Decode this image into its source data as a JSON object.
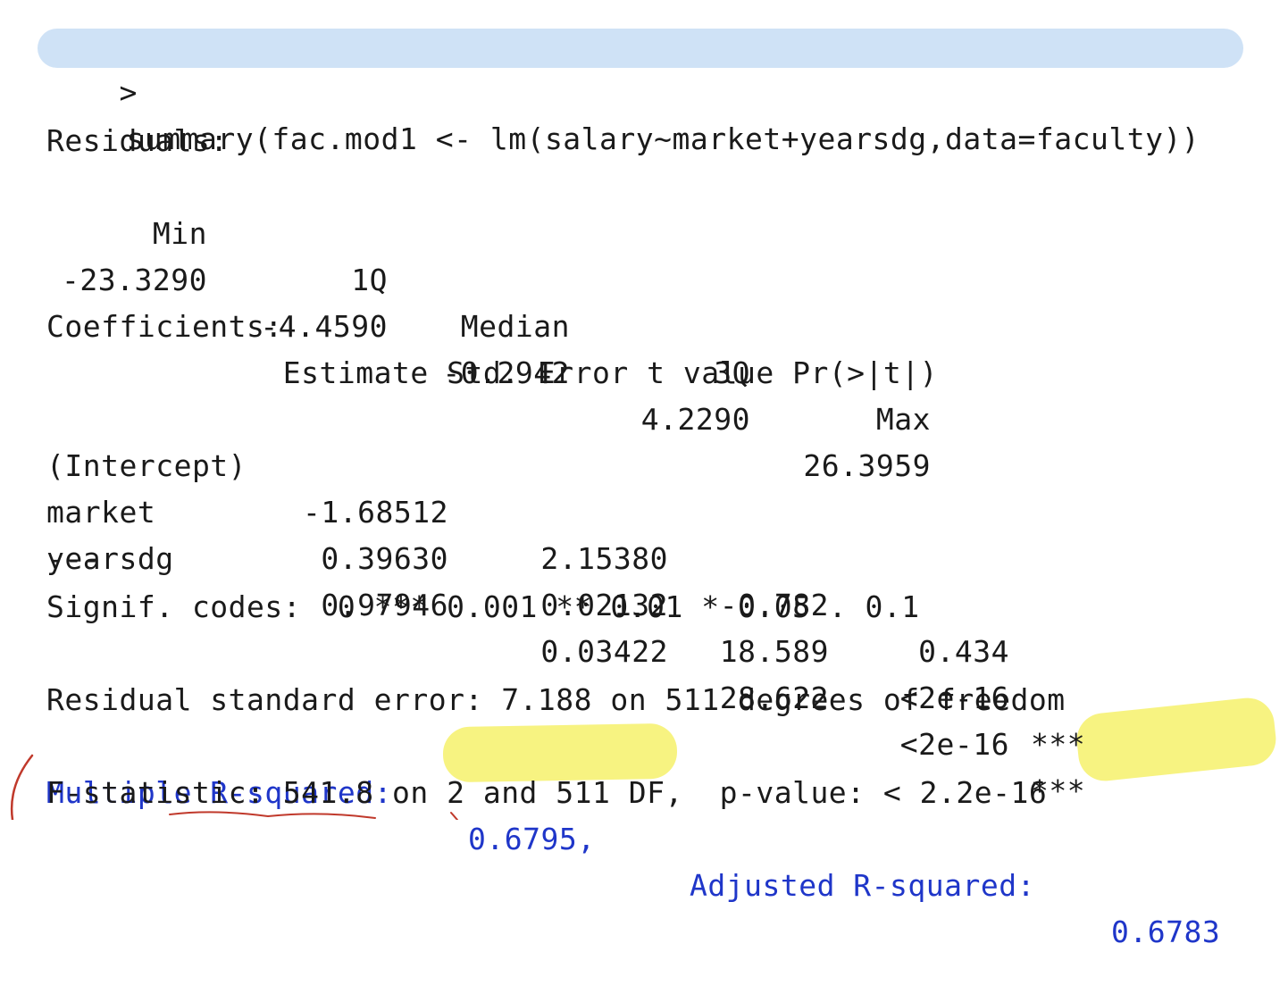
{
  "command": {
    "prompt": ">",
    "text": "summary(fac.mod1 <- lm(salary~market+yearsdg,data=faculty))"
  },
  "residuals": {
    "heading": "Residuals:",
    "headers": [
      "Min",
      "1Q",
      "Median",
      "3Q",
      "Max"
    ],
    "values": [
      "-23.3290",
      "-4.4590",
      "-0.2942",
      "4.2290",
      "26.3959"
    ]
  },
  "coefficients": {
    "heading": "Coefficients:",
    "header_line": "             Estimate Std. Error t value Pr(>|t|)",
    "rows": [
      {
        "name": "(Intercept)",
        "estimate": "-1.68512",
        "std_error": "2.15380",
        "t_value": "-0.782",
        "p_value": "0.434",
        "signif": ""
      },
      {
        "name": "market",
        "estimate": "0.39630",
        "std_error": "0.02132",
        "t_value": "18.589",
        "p_value": "<2e-16",
        "signif": "***"
      },
      {
        "name": "yearsdg",
        "estimate": "0.97946",
        "std_error": "0.03422",
        "t_value": "28.622",
        "p_value": "<2e-16",
        "signif": "***"
      }
    ],
    "separator": "---",
    "signif_codes": "Signif. codes:  0 *** 0.001 ** 0.01 * 0.05 . 0.1"
  },
  "fit": {
    "rse": "Residual standard error: 7.188 on 511 degrees of freedom",
    "r2_label": "Multiple R-squared:",
    "r2_value": "0.6795,",
    "adj_r2_label": "Adjusted R-squared:",
    "adj_r2_value": "0.6783",
    "fstat": "F-statistic: 541.8 on 2 and 511 DF,  p-value: < 2.2e-16"
  },
  "colors": {
    "command_highlight": "#cfe2f6",
    "marker_yellow": "#f7f27a",
    "output_blue": "#1f36c9",
    "annotation_red": "#c0392b"
  }
}
